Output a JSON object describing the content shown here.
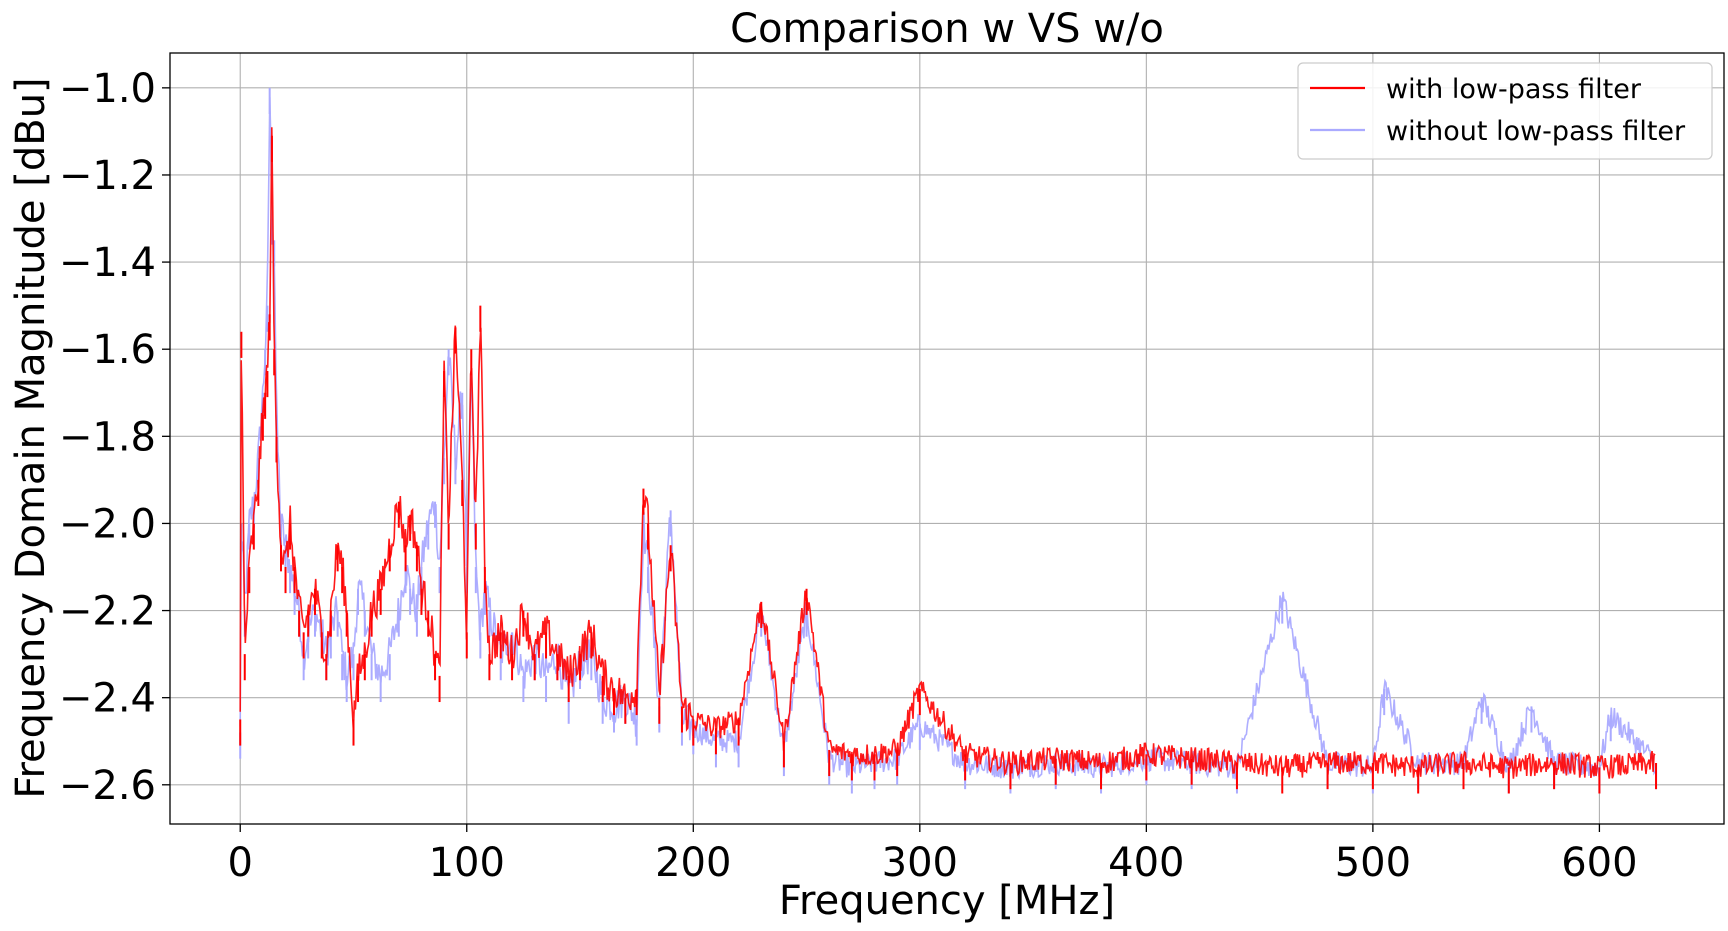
{
  "chart_data": {
    "type": "line",
    "title": "Comparison w VS w/o",
    "xlabel": "Frequency [MHz]",
    "ylabel": "Frequency Domain Magnitude [dBu]",
    "xlim": [
      -31,
      655
    ],
    "ylim": [
      -2.69,
      -0.92
    ],
    "x_ticks": [
      0,
      100,
      200,
      300,
      400,
      500,
      600
    ],
    "x_tick_labels": [
      "0",
      "100",
      "200",
      "300",
      "400",
      "500",
      "600"
    ],
    "y_ticks": [
      -2.6,
      -2.4,
      -2.2,
      -2.0,
      -1.8,
      -1.6,
      -1.4,
      -1.2,
      -1.0
    ],
    "y_tick_labels": [
      "−2.6",
      "−2.4",
      "−2.2",
      "−2.0",
      "−1.8",
      "−1.6",
      "−1.4",
      "−1.2",
      "−1.0"
    ],
    "grid": true,
    "legend_position": "top-right",
    "colors": {
      "with": "#ff0000",
      "without": "#aaaaff",
      "overlap": "#b30a4f"
    },
    "series": [
      {
        "name": "with low-pass filter",
        "color": "#ff0000",
        "x": [
          0,
          0.5,
          2,
          4,
          6,
          8,
          10,
          11,
          12,
          13,
          14,
          15,
          16,
          18,
          20,
          22,
          24,
          26,
          28,
          30,
          33,
          36,
          38,
          40,
          43,
          45,
          47,
          50,
          52,
          55,
          58,
          62,
          66,
          70,
          73,
          75,
          78,
          80,
          83,
          86,
          88,
          90,
          92,
          95,
          98,
          100,
          102,
          104,
          106,
          108,
          110,
          115,
          120,
          125,
          130,
          135,
          140,
          145,
          150,
          155,
          160,
          165,
          170,
          175,
          178,
          180,
          185,
          190,
          195,
          200,
          210,
          220,
          230,
          240,
          250,
          260,
          270,
          280,
          290,
          300,
          320,
          340,
          360,
          380,
          400,
          420,
          440,
          460,
          480,
          500,
          520,
          540,
          560,
          580,
          600,
          625
        ],
        "y": [
          -2.45,
          -1.56,
          -2.3,
          -2.1,
          -2.0,
          -1.9,
          -1.75,
          -1.7,
          -1.65,
          -1.52,
          -1.11,
          -1.6,
          -1.8,
          -2.05,
          -2.1,
          -2.0,
          -2.1,
          -2.2,
          -2.25,
          -2.2,
          -2.15,
          -2.25,
          -2.3,
          -2.2,
          -2.05,
          -2.1,
          -2.2,
          -2.45,
          -2.35,
          -2.3,
          -2.2,
          -2.15,
          -2.05,
          -1.95,
          -2.05,
          -1.98,
          -2.05,
          -2.15,
          -2.2,
          -2.3,
          -2.35,
          -1.65,
          -2.0,
          -1.55,
          -1.9,
          -2.25,
          -1.6,
          -2.0,
          -1.5,
          -2.1,
          -2.3,
          -2.25,
          -2.3,
          -2.2,
          -2.3,
          -2.25,
          -2.3,
          -2.35,
          -2.3,
          -2.25,
          -2.35,
          -2.38,
          -2.4,
          -2.38,
          -1.92,
          -2.0,
          -2.4,
          -2.05,
          -2.42,
          -2.45,
          -2.47,
          -2.45,
          -2.18,
          -2.5,
          -2.15,
          -2.52,
          -2.53,
          -2.53,
          -2.52,
          -2.38,
          -2.53,
          -2.55,
          -2.54,
          -2.55,
          -2.53,
          -2.54,
          -2.55,
          -2.56,
          -2.55,
          -2.55,
          -2.56,
          -2.55,
          -2.56,
          -2.55,
          -2.56,
          -2.55
        ]
      },
      {
        "name": "without low-pass filter",
        "color": "#aaaaff",
        "x": [
          0,
          0.5,
          2,
          4,
          6,
          8,
          10,
          11,
          12,
          13,
          14,
          15,
          16,
          18,
          20,
          22,
          24,
          26,
          28,
          30,
          33,
          36,
          38,
          40,
          43,
          45,
          47,
          50,
          52,
          55,
          58,
          62,
          66,
          70,
          73,
          75,
          78,
          80,
          83,
          86,
          88,
          90,
          92,
          95,
          98,
          100,
          102,
          104,
          106,
          108,
          110,
          115,
          120,
          125,
          130,
          135,
          140,
          145,
          150,
          155,
          160,
          165,
          170,
          175,
          178,
          180,
          185,
          190,
          195,
          200,
          210,
          220,
          230,
          240,
          250,
          260,
          270,
          280,
          290,
          300,
          320,
          340,
          360,
          380,
          400,
          420,
          440,
          460,
          480,
          500,
          505,
          520,
          540,
          548,
          560,
          570,
          580,
          600,
          605,
          625
        ],
        "y": [
          -2.48,
          -2.0,
          -2.2,
          -2.0,
          -1.95,
          -1.85,
          -1.7,
          -1.6,
          -1.5,
          -1.0,
          -1.3,
          -1.35,
          -1.75,
          -2.0,
          -2.05,
          -2.1,
          -2.15,
          -2.2,
          -2.3,
          -2.25,
          -2.2,
          -2.25,
          -2.3,
          -2.25,
          -2.2,
          -2.3,
          -2.35,
          -2.3,
          -2.15,
          -2.2,
          -2.3,
          -2.35,
          -2.3,
          -2.2,
          -2.1,
          -2.15,
          -2.2,
          -2.1,
          -2.0,
          -1.95,
          -2.1,
          -1.85,
          -1.6,
          -1.85,
          -1.7,
          -2.1,
          -1.65,
          -2.1,
          -2.25,
          -2.15,
          -2.2,
          -2.3,
          -2.25,
          -2.35,
          -2.3,
          -2.35,
          -2.3,
          -2.4,
          -2.32,
          -2.3,
          -2.4,
          -2.42,
          -2.4,
          -2.45,
          -2.0,
          -2.1,
          -2.42,
          -1.97,
          -2.45,
          -2.47,
          -2.5,
          -2.5,
          -2.2,
          -2.52,
          -2.2,
          -2.54,
          -2.56,
          -2.55,
          -2.54,
          -2.46,
          -2.55,
          -2.56,
          -2.55,
          -2.56,
          -2.54,
          -2.55,
          -2.56,
          -2.17,
          -2.55,
          -2.56,
          -2.38,
          -2.55,
          -2.55,
          -2.4,
          -2.56,
          -2.42,
          -2.55,
          -2.56,
          -2.44,
          -2.55
        ]
      }
    ]
  }
}
